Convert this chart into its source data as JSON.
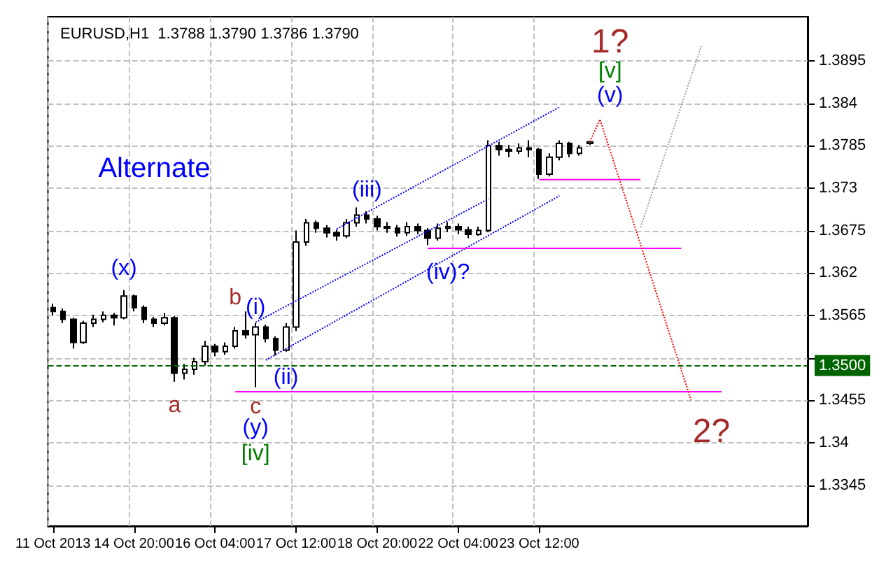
{
  "chart_data": {
    "type": "candlestick",
    "title": "EURUSD,H1  1.3788 1.3790 1.3786 1.3790",
    "categories": [
      "11 Oct 2013",
      null,
      null,
      null,
      null,
      null,
      null,
      null,
      "14 Oct 20:00",
      null,
      null,
      null,
      null,
      null,
      null,
      null,
      "16 Oct 04:00",
      null,
      null,
      null,
      null,
      null,
      null,
      null,
      "17 Oct 12:00",
      null,
      null,
      null,
      null,
      null,
      null,
      null,
      "18 Oct 20:00",
      null,
      null,
      null,
      null,
      null,
      null,
      null,
      "22 Oct 04:00",
      null,
      null,
      null,
      null,
      null,
      null,
      null,
      "23 Oct 12:00",
      null,
      null,
      null,
      null,
      null,
      null,
      null,
      null,
      null,
      null,
      null,
      null,
      null,
      null,
      null,
      null,
      null,
      null,
      null,
      null,
      null,
      null,
      null,
      null,
      null,
      null
    ],
    "ohlc": [
      [
        1.3575,
        1.358,
        1.3565,
        1.357
      ],
      [
        1.357,
        1.3574,
        1.3555,
        1.356
      ],
      [
        1.356,
        1.3562,
        1.3522,
        1.353
      ],
      [
        1.353,
        1.3558,
        1.3528,
        1.3555
      ],
      [
        1.3555,
        1.3566,
        1.355,
        1.356
      ],
      [
        1.356,
        1.357,
        1.3556,
        1.3565
      ],
      [
        1.3565,
        1.3568,
        1.3552,
        1.3562
      ],
      [
        1.3562,
        1.3598,
        1.356,
        1.359
      ],
      [
        1.359,
        1.3592,
        1.357,
        1.3575
      ],
      [
        1.3575,
        1.3578,
        1.3555,
        1.356
      ],
      [
        1.356,
        1.3563,
        1.355,
        1.3555
      ],
      [
        1.3555,
        1.3568,
        1.3552,
        1.3562
      ],
      [
        1.3562,
        1.3564,
        1.3479,
        1.349
      ],
      [
        1.349,
        1.3502,
        1.3482,
        1.3495
      ],
      [
        1.3495,
        1.351,
        1.3488,
        1.3505
      ],
      [
        1.3505,
        1.3532,
        1.35,
        1.3525
      ],
      [
        1.3525,
        1.3528,
        1.3512,
        1.3518
      ],
      [
        1.3518,
        1.353,
        1.3514,
        1.3525
      ],
      [
        1.3525,
        1.355,
        1.3522,
        1.3545
      ],
      [
        1.3545,
        1.357,
        1.3535,
        1.354
      ],
      [
        1.354,
        1.3555,
        1.3472,
        1.355
      ],
      [
        1.355,
        1.3553,
        1.353,
        1.3535
      ],
      [
        1.3535,
        1.3538,
        1.3513,
        1.352
      ],
      [
        1.352,
        1.3555,
        1.3518,
        1.355
      ],
      [
        1.355,
        1.3675,
        1.3545,
        1.366
      ],
      [
        1.366,
        1.369,
        1.3655,
        1.3685
      ],
      [
        1.3685,
        1.3688,
        1.3672,
        1.3678
      ],
      [
        1.3678,
        1.3682,
        1.3666,
        1.3672
      ],
      [
        1.3672,
        1.3676,
        1.3662,
        1.3668
      ],
      [
        1.3668,
        1.369,
        1.3665,
        1.3685
      ],
      [
        1.3685,
        1.3705,
        1.368,
        1.3695
      ],
      [
        1.3695,
        1.37,
        1.3684,
        1.369
      ],
      [
        1.369,
        1.3694,
        1.3675,
        1.368
      ],
      [
        1.368,
        1.3686,
        1.3672,
        1.3678
      ],
      [
        1.3678,
        1.3682,
        1.3667,
        1.3672
      ],
      [
        1.3672,
        1.3686,
        1.3668,
        1.368
      ],
      [
        1.368,
        1.3684,
        1.367,
        1.3675
      ],
      [
        1.3675,
        1.3678,
        1.3656,
        1.3665
      ],
      [
        1.3665,
        1.3684,
        1.3662,
        1.3678
      ],
      [
        1.3678,
        1.3686,
        1.3673,
        1.368
      ],
      [
        1.368,
        1.3684,
        1.367,
        1.3676
      ],
      [
        1.3676,
        1.368,
        1.3665,
        1.367
      ],
      [
        1.367,
        1.368,
        1.3668,
        1.3675
      ],
      [
        1.3675,
        1.3792,
        1.3673,
        1.3785
      ],
      [
        1.3785,
        1.379,
        1.3772,
        1.378
      ],
      [
        1.378,
        1.3786,
        1.377,
        1.3778
      ],
      [
        1.3778,
        1.3788,
        1.3774,
        1.3782
      ],
      [
        1.3782,
        1.3792,
        1.377,
        1.378
      ],
      [
        1.378,
        1.3782,
        1.3742,
        1.3748
      ],
      [
        1.3748,
        1.3775,
        1.3745,
        1.377
      ],
      [
        1.377,
        1.3792,
        1.3766,
        1.3788
      ],
      [
        1.3788,
        1.379,
        1.377,
        1.3775
      ],
      [
        1.3775,
        1.3786,
        1.3772,
        1.3782
      ],
      [
        1.3788,
        1.379,
        1.3786,
        1.379
      ],
      null,
      null,
      null,
      null,
      null,
      null,
      null,
      null,
      null,
      null,
      null,
      null,
      null,
      null,
      null,
      null,
      null,
      null,
      null,
      null,
      null
    ],
    "color": "#000000",
    "series": [
      {
        "type": "line",
        "color": "#0000ff",
        "line_style": "dotted",
        "values": [
          null,
          null,
          null,
          null,
          null,
          null,
          null,
          null,
          null,
          null,
          null,
          null,
          null,
          null,
          null,
          null,
          null,
          null,
          null,
          null,
          null,
          null,
          null,
          null,
          null,
          null,
          null,
          null,
          1.3677,
          null,
          null,
          null,
          null,
          null,
          null,
          null,
          null,
          null,
          null,
          null,
          null,
          null,
          null,
          null,
          null,
          null,
          null,
          null,
          null,
          null,
          1.3835,
          null,
          null,
          null,
          null,
          null,
          null,
          null,
          null,
          null,
          null,
          null,
          null,
          null,
          null,
          null,
          null,
          null,
          null,
          null,
          null,
          null,
          null,
          null,
          null
        ]
      },
      {
        "type": "line",
        "color": "#0000ff",
        "line_style": "dotted",
        "values": [
          null,
          null,
          null,
          null,
          null,
          null,
          null,
          null,
          null,
          null,
          null,
          null,
          null,
          null,
          null,
          null,
          null,
          null,
          null,
          null,
          1.3556,
          null,
          null,
          null,
          null,
          null,
          null,
          null,
          null,
          null,
          null,
          null,
          null,
          null,
          null,
          null,
          null,
          null,
          null,
          null,
          null,
          null,
          null,
          1.3716,
          null,
          null,
          null,
          null,
          null,
          null,
          null,
          null,
          null,
          null,
          null,
          null,
          null,
          null,
          null,
          null,
          null,
          null,
          null,
          null,
          null,
          null,
          null,
          null,
          null,
          null,
          null,
          null,
          null,
          null,
          null
        ]
      },
      {
        "type": "line",
        "color": "#0000ff",
        "line_style": "dotted",
        "values": [
          null,
          null,
          null,
          null,
          null,
          null,
          null,
          null,
          null,
          null,
          null,
          null,
          null,
          null,
          null,
          null,
          null,
          null,
          null,
          null,
          null,
          1.3507,
          null,
          null,
          null,
          null,
          null,
          null,
          null,
          null,
          null,
          null,
          null,
          null,
          null,
          null,
          null,
          null,
          null,
          null,
          null,
          null,
          null,
          null,
          null,
          null,
          null,
          null,
          null,
          null,
          1.372,
          null,
          null,
          null,
          null,
          null,
          null,
          null,
          null,
          null,
          null,
          null,
          null,
          null,
          null,
          null,
          null,
          null,
          null,
          null,
          null,
          null,
          null,
          null,
          null
        ]
      },
      {
        "type": "line",
        "color": "#ff00ff",
        "line_style": "solid",
        "values": [
          null,
          null,
          null,
          null,
          null,
          null,
          null,
          null,
          null,
          null,
          null,
          null,
          null,
          null,
          null,
          null,
          null,
          null,
          1.3466,
          null,
          null,
          null,
          null,
          null,
          null,
          null,
          null,
          null,
          null,
          null,
          null,
          null,
          null,
          null,
          null,
          null,
          null,
          null,
          null,
          null,
          null,
          null,
          null,
          null,
          null,
          null,
          null,
          null,
          null,
          null,
          null,
          null,
          null,
          null,
          null,
          null,
          null,
          null,
          null,
          null,
          null,
          null,
          null,
          null,
          null,
          null,
          1.3466,
          null,
          null,
          null,
          null,
          null,
          null,
          null,
          null
        ]
      },
      {
        "type": "line",
        "color": "#ff00ff",
        "line_style": "solid",
        "values": [
          null,
          null,
          null,
          null,
          null,
          null,
          null,
          null,
          null,
          null,
          null,
          null,
          null,
          null,
          null,
          null,
          null,
          null,
          null,
          null,
          null,
          null,
          null,
          null,
          null,
          null,
          null,
          null,
          null,
          null,
          null,
          null,
          null,
          null,
          null,
          null,
          null,
          1.3652,
          null,
          null,
          null,
          null,
          null,
          null,
          null,
          null,
          null,
          null,
          null,
          null,
          null,
          null,
          null,
          null,
          null,
          null,
          null,
          null,
          null,
          null,
          null,
          null,
          1.3652,
          null,
          null,
          null,
          null,
          null,
          null,
          null,
          null,
          null,
          null,
          null,
          null
        ]
      },
      {
        "type": "line",
        "color": "#ff00ff",
        "line_style": "solid",
        "values": [
          null,
          null,
          null,
          null,
          null,
          null,
          null,
          null,
          null,
          null,
          null,
          null,
          null,
          null,
          null,
          null,
          null,
          null,
          null,
          null,
          null,
          null,
          null,
          null,
          null,
          null,
          null,
          null,
          null,
          null,
          null,
          null,
          null,
          null,
          null,
          null,
          null,
          null,
          null,
          null,
          null,
          null,
          null,
          null,
          null,
          null,
          null,
          null,
          1.3741,
          null,
          null,
          null,
          null,
          null,
          null,
          null,
          null,
          null,
          1.3741,
          null,
          null,
          null,
          null,
          null,
          null,
          null,
          null,
          null,
          null,
          null,
          null,
          null,
          null,
          null,
          null
        ]
      },
      {
        "type": "line",
        "color": "#ff0000",
        "line_style": "dotted",
        "values": [
          null,
          null,
          null,
          null,
          null,
          null,
          null,
          null,
          null,
          null,
          null,
          null,
          null,
          null,
          null,
          null,
          null,
          null,
          null,
          null,
          null,
          null,
          null,
          null,
          null,
          null,
          null,
          null,
          null,
          null,
          null,
          null,
          null,
          null,
          null,
          null,
          null,
          null,
          null,
          null,
          null,
          null,
          null,
          null,
          null,
          null,
          null,
          null,
          null,
          null,
          null,
          null,
          null,
          1.379,
          1.3819,
          null,
          null,
          null,
          null,
          null,
          null,
          null,
          null,
          1.3455,
          null,
          null,
          null,
          null,
          null,
          null,
          null,
          null,
          null,
          null,
          null
        ]
      },
      {
        "type": "line",
        "color": "#a0a0a0",
        "line_style": "dotted",
        "values": [
          null,
          null,
          null,
          null,
          null,
          null,
          null,
          null,
          null,
          null,
          null,
          null,
          null,
          null,
          null,
          null,
          null,
          null,
          null,
          null,
          null,
          null,
          null,
          null,
          null,
          null,
          null,
          null,
          null,
          null,
          null,
          null,
          null,
          null,
          null,
          null,
          null,
          null,
          null,
          null,
          null,
          null,
          null,
          null,
          null,
          null,
          null,
          null,
          null,
          null,
          null,
          null,
          null,
          null,
          null,
          null,
          null,
          null,
          1.3679,
          null,
          null,
          null,
          null,
          null,
          1.3914,
          null,
          null,
          null,
          null,
          null,
          null,
          null,
          null,
          null,
          null
        ]
      }
    ],
    "ref_lines": [
      {
        "axis": "y",
        "value": 1.35,
        "label": "1.3500",
        "color": "#006400",
        "line_style": "dashed"
      }
    ],
    "annotations": [
      "Alternate",
      "(x)",
      "a",
      "b",
      "c",
      "(y)",
      "[iv]",
      "(i)",
      "(ii)",
      "(iii)",
      "(iv)?",
      "(v)",
      "[v]",
      "1?",
      "2?"
    ],
    "ylim": [
      1.3292,
      1.3952
    ],
    "yticks": [
      1.3345,
      1.34,
      1.3455,
      {
        "value": 1.351,
        "label": null
      },
      1.3565,
      1.362,
      1.3675,
      1.373,
      1.3785,
      1.384,
      1.3895
    ],
    "grid": true,
    "marker": "none"
  }
}
